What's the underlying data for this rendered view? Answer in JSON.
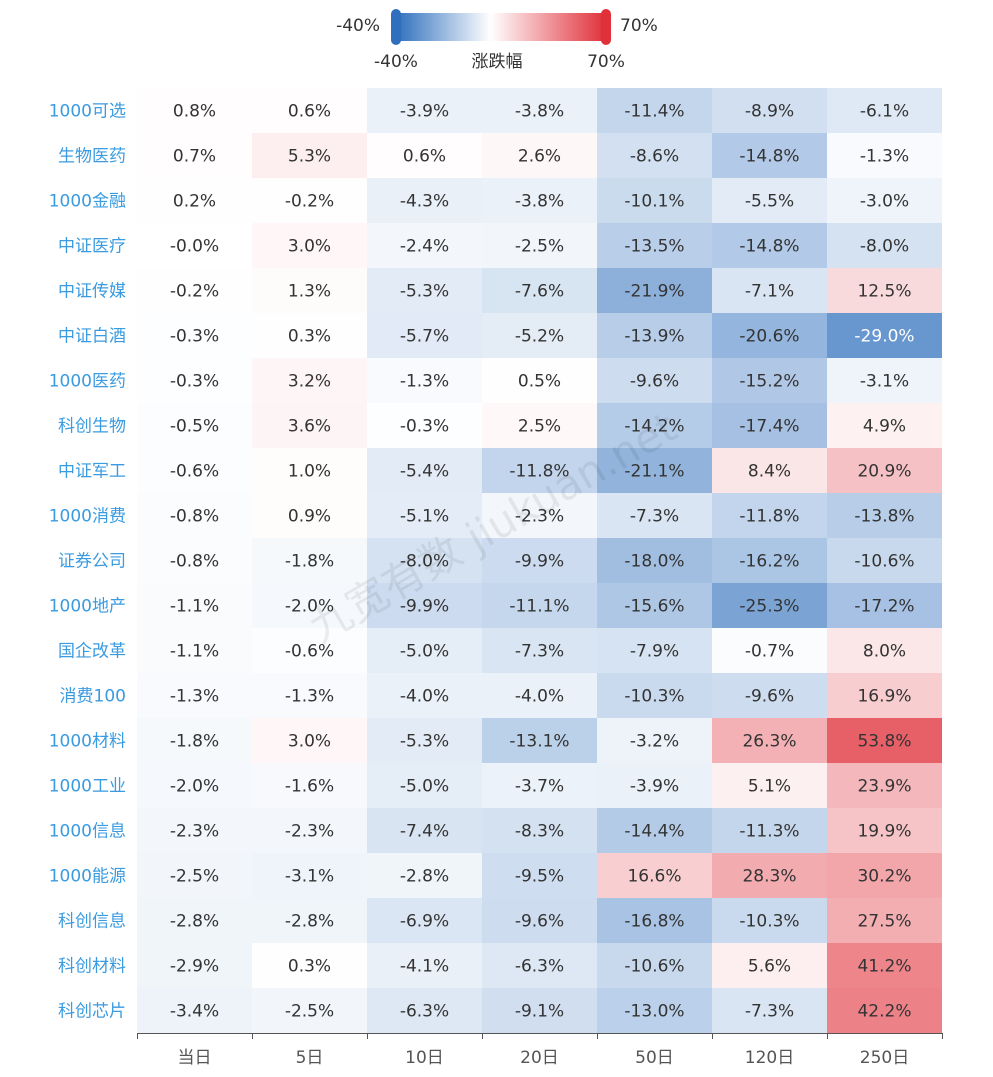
{
  "chart_data": {
    "type": "heatmap",
    "visual_map": {
      "min": -40,
      "max": 70,
      "min_label": "-40%",
      "max_label": "70%",
      "title": "涨跌幅",
      "colors": [
        "#2f6fbd",
        "#ffffff",
        "#e0303a"
      ]
    },
    "columns": [
      "当日",
      "5日",
      "10日",
      "20日",
      "50日",
      "120日",
      "250日"
    ],
    "rows": [
      "1000可选",
      "生物医药",
      "1000金融",
      "中证医疗",
      "中证传媒",
      "中证白酒",
      "1000医药",
      "科创生物",
      "中证军工",
      "1000消费",
      "证券公司",
      "1000地产",
      "国企改革",
      "消费100",
      "1000材料",
      "1000工业",
      "1000信息",
      "1000能源",
      "科创信息",
      "科创材料",
      "科创芯片"
    ],
    "values": [
      [
        0.8,
        0.6,
        -3.9,
        -3.8,
        -11.4,
        -8.9,
        -6.1
      ],
      [
        0.7,
        5.3,
        0.6,
        2.6,
        -8.6,
        -14.8,
        -1.3
      ],
      [
        0.2,
        -0.2,
        -4.3,
        -3.8,
        -10.1,
        -5.5,
        -3.0
      ],
      [
        -0.0,
        3.0,
        -2.4,
        -2.5,
        -13.5,
        -14.8,
        -8.0
      ],
      [
        -0.2,
        1.3,
        -5.3,
        -7.6,
        -21.9,
        -7.1,
        12.5
      ],
      [
        -0.3,
        0.3,
        -5.7,
        -5.2,
        -13.9,
        -20.6,
        -29.0
      ],
      [
        -0.3,
        3.2,
        -1.3,
        0.5,
        -9.6,
        -15.2,
        -3.1
      ],
      [
        -0.5,
        3.6,
        -0.3,
        2.5,
        -14.2,
        -17.4,
        4.9
      ],
      [
        -0.6,
        1.0,
        -5.4,
        -11.8,
        -21.1,
        8.4,
        20.9
      ],
      [
        -0.8,
        0.9,
        -5.1,
        -2.3,
        -7.3,
        -11.8,
        -13.8
      ],
      [
        -0.8,
        -1.8,
        -8.0,
        -9.9,
        -18.0,
        -16.2,
        -10.6
      ],
      [
        -1.1,
        -2.0,
        -9.9,
        -11.1,
        -15.6,
        -25.3,
        -17.2
      ],
      [
        -1.1,
        -0.6,
        -5.0,
        -7.3,
        -7.9,
        -0.7,
        8.0
      ],
      [
        -1.3,
        -1.3,
        -4.0,
        -4.0,
        -10.3,
        -9.6,
        16.9
      ],
      [
        -1.8,
        3.0,
        -5.3,
        -13.1,
        -3.2,
        26.3,
        53.8
      ],
      [
        -2.0,
        -1.6,
        -5.0,
        -3.7,
        -3.9,
        5.1,
        23.9
      ],
      [
        -2.3,
        -2.3,
        -7.4,
        -8.3,
        -14.4,
        -11.3,
        19.9
      ],
      [
        -2.5,
        -3.1,
        -2.8,
        -9.5,
        16.6,
        28.3,
        30.2
      ],
      [
        -2.8,
        -2.8,
        -6.9,
        -9.6,
        -16.8,
        -10.3,
        27.5
      ],
      [
        -2.9,
        0.3,
        -4.1,
        -6.3,
        -10.6,
        5.6,
        41.2
      ],
      [
        -3.4,
        -2.5,
        -6.3,
        -9.1,
        -13.0,
        -7.3,
        42.2
      ]
    ],
    "labels": [
      [
        "0.8%",
        "0.6%",
        "-3.9%",
        "-3.8%",
        "-11.4%",
        "-8.9%",
        "-6.1%"
      ],
      [
        "0.7%",
        "5.3%",
        "0.6%",
        "2.6%",
        "-8.6%",
        "-14.8%",
        "-1.3%"
      ],
      [
        "0.2%",
        "-0.2%",
        "-4.3%",
        "-3.8%",
        "-10.1%",
        "-5.5%",
        "-3.0%"
      ],
      [
        "-0.0%",
        "3.0%",
        "-2.4%",
        "-2.5%",
        "-13.5%",
        "-14.8%",
        "-8.0%"
      ],
      [
        "-0.2%",
        "1.3%",
        "-5.3%",
        "-7.6%",
        "-21.9%",
        "-7.1%",
        "12.5%"
      ],
      [
        "-0.3%",
        "0.3%",
        "-5.7%",
        "-5.2%",
        "-13.9%",
        "-20.6%",
        "-29.0%"
      ],
      [
        "-0.3%",
        "3.2%",
        "-1.3%",
        "0.5%",
        "-9.6%",
        "-15.2%",
        "-3.1%"
      ],
      [
        "-0.5%",
        "3.6%",
        "-0.3%",
        "2.5%",
        "-14.2%",
        "-17.4%",
        "4.9%"
      ],
      [
        "-0.6%",
        "1.0%",
        "-5.4%",
        "-11.8%",
        "-21.1%",
        "8.4%",
        "20.9%"
      ],
      [
        "-0.8%",
        "0.9%",
        "-5.1%",
        "-2.3%",
        "-7.3%",
        "-11.8%",
        "-13.8%"
      ],
      [
        "-0.8%",
        "-1.8%",
        "-8.0%",
        "-9.9%",
        "-18.0%",
        "-16.2%",
        "-10.6%"
      ],
      [
        "-1.1%",
        "-2.0%",
        "-9.9%",
        "-11.1%",
        "-15.6%",
        "-25.3%",
        "-17.2%"
      ],
      [
        "-1.1%",
        "-0.6%",
        "-5.0%",
        "-7.3%",
        "-7.9%",
        "-0.7%",
        "8.0%"
      ],
      [
        "-1.3%",
        "-1.3%",
        "-4.0%",
        "-4.0%",
        "-10.3%",
        "-9.6%",
        "16.9%"
      ],
      [
        "-1.8%",
        "3.0%",
        "-5.3%",
        "-13.1%",
        "-3.2%",
        "26.3%",
        "53.8%"
      ],
      [
        "-2.0%",
        "-1.6%",
        "-5.0%",
        "-3.7%",
        "-3.9%",
        "5.1%",
        "23.9%"
      ],
      [
        "-2.3%",
        "-2.3%",
        "-7.4%",
        "-8.3%",
        "-14.4%",
        "-11.3%",
        "19.9%"
      ],
      [
        "-2.5%",
        "-3.1%",
        "-2.8%",
        "-9.5%",
        "16.6%",
        "28.3%",
        "30.2%"
      ],
      [
        "-2.8%",
        "-2.8%",
        "-6.9%",
        "-9.6%",
        "-16.8%",
        "-10.3%",
        "27.5%"
      ],
      [
        "-2.9%",
        "0.3%",
        "-4.1%",
        "-6.3%",
        "-10.6%",
        "5.6%",
        "41.2%"
      ],
      [
        "-3.4%",
        "-2.5%",
        "-6.3%",
        "-9.1%",
        "-13.0%",
        "-7.3%",
        "42.2%"
      ]
    ],
    "watermark": "九宽有数 jiukuan.net",
    "row_label_color": "#3a9be0",
    "axis_label_color": "#555555",
    "cell_text_color": "#333333"
  }
}
